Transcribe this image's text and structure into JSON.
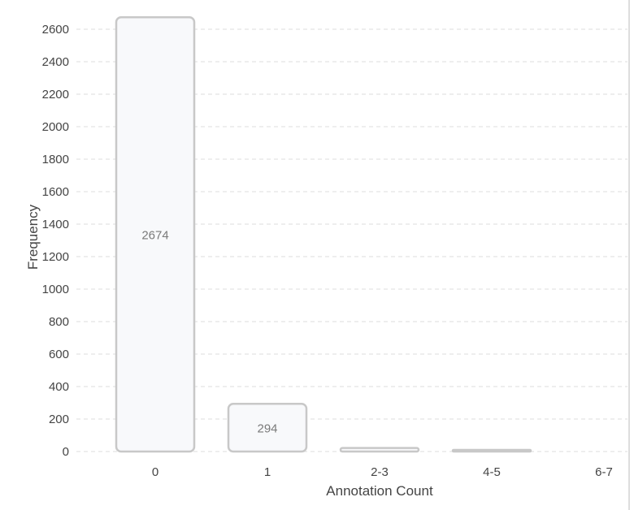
{
  "chart_data": {
    "type": "bar",
    "categories": [
      "0",
      "1",
      "2-3",
      "4-5",
      "6-7"
    ],
    "values": [
      2674,
      294,
      22,
      7,
      0
    ],
    "data_labels": [
      "2674",
      "294",
      "",
      "",
      ""
    ],
    "xlabel": "Annotation Count",
    "ylabel": "Frequency",
    "ylim": [
      0,
      2650
    ],
    "yticks": [
      0,
      200,
      400,
      600,
      800,
      1000,
      1200,
      1400,
      1600,
      1800,
      2000,
      2200,
      2400,
      2600
    ],
    "grid": true,
    "legend": "none",
    "colors": {
      "bar_fill": "#f8f9fb",
      "bar_stroke": "#c8c8c8",
      "grid": "#dddddd",
      "tick_text": "#444444",
      "label_text": "#7a7a7a",
      "right_border": "#bbbbbb"
    }
  }
}
